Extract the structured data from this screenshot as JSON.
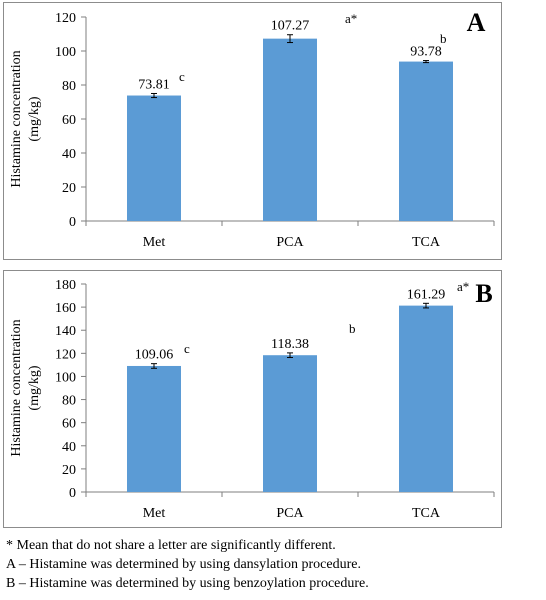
{
  "chart_data": [
    {
      "panel_label": "A",
      "type": "bar",
      "categories": [
        "Met",
        "PCA",
        "TCA"
      ],
      "values": [
        73.81,
        107.27,
        93.78
      ],
      "errors": [
        1.2,
        2.3,
        0.6
      ],
      "value_labels": [
        "73.81",
        "107.27",
        "93.78"
      ],
      "letters": [
        "c",
        "a*",
        "b"
      ],
      "ylabel": "Histamine concentration (mg/kg)",
      "ylabel_lines": [
        "Histamine concentration",
        "(mg/kg)"
      ],
      "ylim": [
        0,
        120
      ],
      "yticks": [
        0,
        20,
        40,
        60,
        80,
        100,
        120
      ],
      "bar_color": "#5b9bd5",
      "grid": false
    },
    {
      "panel_label": "B",
      "type": "bar",
      "categories": [
        "Met",
        "PCA",
        "TCA"
      ],
      "values": [
        109.06,
        118.38,
        161.29
      ],
      "errors": [
        2.0,
        2.0,
        2.0
      ],
      "value_labels": [
        "109.06",
        "118.38",
        "161.29"
      ],
      "letters": [
        "c",
        "b",
        "a*"
      ],
      "ylabel": "Histamine concentration (mg/kg)",
      "ylabel_lines": [
        "Histamine concentration",
        "(mg/kg)"
      ],
      "ylim": [
        0,
        180
      ],
      "yticks": [
        0,
        20,
        40,
        60,
        80,
        100,
        120,
        140,
        160,
        180
      ],
      "bar_color": "#5b9bd5",
      "grid": false
    }
  ],
  "footnotes": [
    "* Mean that do not share a letter are significantly different.",
    "A – Histamine was determined by using dansylation procedure.",
    "B – Histamine was determined by using benzoylation procedure."
  ]
}
